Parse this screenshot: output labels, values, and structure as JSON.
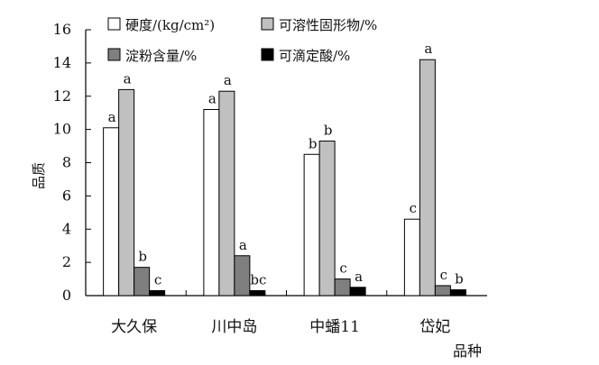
{
  "chart_data": {
    "type": "bar",
    "xlabel": "品种",
    "ylabel": "品质",
    "ylim": [
      0,
      16
    ],
    "yticks": [
      0,
      2,
      4,
      6,
      8,
      10,
      12,
      14,
      16
    ],
    "grid": false,
    "legend_position": "top",
    "categories": [
      "大久保",
      "川中岛",
      "中蟠11",
      "岱妃"
    ],
    "series": [
      {
        "name": "硬度/(kg/cm²)",
        "color": "#ffffff",
        "values": [
          10.1,
          11.2,
          8.5,
          4.6
        ],
        "letters": [
          "a",
          "a",
          "b",
          "c"
        ]
      },
      {
        "name": "可溶性固形物/%",
        "color": "#c0c0c0",
        "values": [
          12.4,
          12.3,
          9.3,
          14.2
        ],
        "letters": [
          "a",
          "a",
          "b",
          "a"
        ]
      },
      {
        "name": "淀粉含量/%",
        "color": "#7f7f7f",
        "values": [
          1.7,
          2.4,
          1.0,
          0.6
        ],
        "letters": [
          "b",
          "a",
          "c",
          "c"
        ]
      },
      {
        "name": "可滴定酸/%",
        "color": "#000000",
        "values": [
          0.3,
          0.3,
          0.5,
          0.35
        ],
        "letters": [
          "c",
          "bc",
          "a",
          "b"
        ]
      }
    ]
  }
}
